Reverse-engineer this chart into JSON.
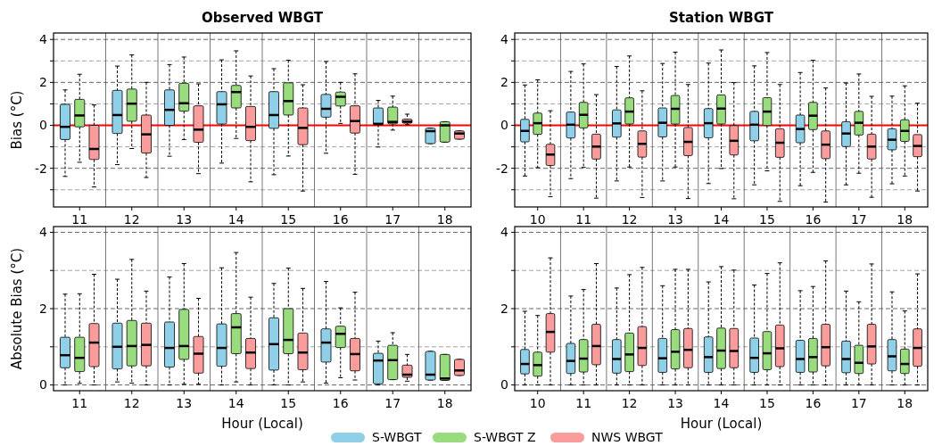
{
  "chart_data": [
    {
      "type": "box",
      "title": "Observed WBGT",
      "ylabel": "Bias (°C)",
      "legend": "bottom",
      "categories": [
        "11",
        "12",
        "13",
        "14",
        "15",
        "16",
        "17",
        "18"
      ],
      "ylim": [
        -3.8,
        4.3
      ],
      "yticks": [
        {
          "value": -3,
          "label": null
        },
        -2,
        {
          "value": -1,
          "label": null
        },
        0,
        {
          "value": 1,
          "label": null
        },
        2,
        {
          "value": 3,
          "label": null
        },
        4
      ],
      "grid": "y",
      "ref_lines": [
        {
          "axis": "y",
          "value": 0,
          "color": "#ff0000"
        }
      ],
      "series": [
        {
          "name": "S-WBGT",
          "color": "#8fd0e8",
          "boxes": [
            {
              "low": -2.38,
              "q1": -0.66,
              "median": -0.07,
              "q3": 0.98,
              "high": 1.65
            },
            {
              "low": -1.83,
              "q1": -0.38,
              "median": 0.48,
              "q3": 1.63,
              "high": 2.76
            },
            {
              "low": -1.44,
              "q1": 0,
              "median": 0.72,
              "q3": 1.65,
              "high": 2.83
            },
            {
              "low": -1.76,
              "q1": 0.06,
              "median": 0.98,
              "q3": 1.57,
              "high": 3.05
            },
            {
              "low": -2.3,
              "q1": -0.14,
              "median": 0.48,
              "q3": 1.57,
              "high": 2.64
            },
            {
              "low": -1.3,
              "q1": 0.38,
              "median": 0.77,
              "q3": 1.44,
              "high": 2.97
            },
            {
              "low": -1.01,
              "q1": 0.03,
              "median": 0.07,
              "q3": 0.81,
              "high": 1.16
            },
            {
              "low": -0.85,
              "q1": -0.85,
              "median": -0.27,
              "q3": -0.13,
              "high": -0.13
            }
          ]
        },
        {
          "name": "S-WBGT Z",
          "color": "#98dc7e",
          "boxes": [
            {
              "low": -1.72,
              "q1": -0.07,
              "median": 0.46,
              "q3": 1.21,
              "high": 2.38
            },
            {
              "low": -1.08,
              "q1": 0.19,
              "median": 1.01,
              "q3": 1.69,
              "high": 3.28
            },
            {
              "low": -0.66,
              "q1": 0.66,
              "median": 1.03,
              "q3": 1.96,
              "high": 3.18
            },
            {
              "low": -0.61,
              "q1": 0.81,
              "median": 1.55,
              "q3": 1.86,
              "high": 3.47
            },
            {
              "low": -1.43,
              "q1": 0.48,
              "median": 1.13,
              "q3": 1.98,
              "high": 3.03
            },
            {
              "low": 0.09,
              "q1": 0.9,
              "median": 1.33,
              "q3": 1.55,
              "high": 2.0
            },
            {
              "low": -0.22,
              "q1": 0.07,
              "median": 0.16,
              "q3": 0.85,
              "high": 1.36
            },
            {
              "low": -0.78,
              "q1": -0.78,
              "median": 0,
              "q3": 0.17,
              "high": 0.17
            }
          ]
        },
        {
          "name": "NWS WBGT",
          "color": "#fa9c9c",
          "boxes": [
            {
              "low": -2.87,
              "q1": -1.59,
              "median": -1.1,
              "q3": 0,
              "high": 0.95
            },
            {
              "low": -2.43,
              "q1": -1.29,
              "median": -0.42,
              "q3": 0.48,
              "high": 2.0
            },
            {
              "low": -2.25,
              "q1": -0.79,
              "median": -0.2,
              "q3": 0.91,
              "high": 1.93
            },
            {
              "low": -2.63,
              "q1": -0.71,
              "median": -0.07,
              "q3": 0.88,
              "high": 2.3
            },
            {
              "low": -3.06,
              "q1": -0.9,
              "median": -0.12,
              "q3": 0.81,
              "high": 1.89
            },
            {
              "low": -2.28,
              "q1": -0.36,
              "median": 0.2,
              "q3": 0.91,
              "high": 2.4
            },
            {
              "low": 0.03,
              "q1": 0.1,
              "median": 0.17,
              "q3": 0.29,
              "high": 0.52
            },
            {
              "low": -0.64,
              "q1": -0.64,
              "median": -0.38,
              "q3": -0.26,
              "high": -0.26
            }
          ]
        }
      ]
    },
    {
      "type": "box",
      "title": "Station WBGT",
      "categories": [
        "10",
        "11",
        "12",
        "13",
        "14",
        "15",
        "16",
        "17",
        "18"
      ],
      "ylim": [
        -3.8,
        4.3
      ],
      "yticks": [
        {
          "value": -3,
          "label": null
        },
        -2,
        {
          "value": -1,
          "label": null
        },
        0,
        {
          "value": 1,
          "label": null
        },
        2,
        {
          "value": 3,
          "label": null
        },
        4
      ],
      "grid": "y",
      "ref_lines": [
        {
          "axis": "y",
          "value": 0,
          "color": "#ff0000"
        }
      ],
      "series": [
        {
          "color": "#8fd0e8",
          "boxes": [
            {
              "low": -2.36,
              "q1": -0.77,
              "median": -0.26,
              "q3": 0.28,
              "high": 1.88
            },
            {
              "low": -2.48,
              "q1": -0.59,
              "median": 0.03,
              "q3": 0.62,
              "high": 2.51
            },
            {
              "low": -2.59,
              "q1": -0.55,
              "median": 0.09,
              "q3": 0.72,
              "high": 2.74
            },
            {
              "low": -2.59,
              "q1": -0.54,
              "median": 0.12,
              "q3": 0.81,
              "high": 2.88
            },
            {
              "low": -2.71,
              "q1": -0.58,
              "median": 0.1,
              "q3": 0.78,
              "high": 2.9
            },
            {
              "low": -2.77,
              "q1": -0.72,
              "median": 0.03,
              "q3": 0.65,
              "high": 2.77
            },
            {
              "low": -2.81,
              "q1": -0.81,
              "median": -0.17,
              "q3": 0.48,
              "high": 2.46
            },
            {
              "low": -2.77,
              "q1": -0.99,
              "median": -0.38,
              "q3": 0.17,
              "high": 1.97
            },
            {
              "low": -2.72,
              "q1": -1.14,
              "median": -0.67,
              "q3": -0.16,
              "high": 1.36
            }
          ]
        },
        {
          "color": "#98dc7e",
          "boxes": [
            {
              "low": -1.97,
              "q1": -0.42,
              "median": 0.1,
              "q3": 0.57,
              "high": 2.12
            },
            {
              "low": -1.96,
              "q1": -0.12,
              "median": 0.49,
              "q3": 1.07,
              "high": 2.86
            },
            {
              "low": -1.94,
              "q1": 0.06,
              "median": 0.64,
              "q3": 1.28,
              "high": 3.23
            },
            {
              "low": -1.94,
              "q1": 0.06,
              "median": 0.77,
              "q3": 1.39,
              "high": 3.41
            },
            {
              "low": -2.01,
              "q1": 0.06,
              "median": 0.78,
              "q3": 1.42,
              "high": 3.51
            },
            {
              "low": -2.12,
              "q1": -0.01,
              "median": 0.64,
              "q3": 1.29,
              "high": 3.39
            },
            {
              "low": -2.19,
              "q1": -0.2,
              "median": 0.45,
              "q3": 1.07,
              "high": 3.03
            },
            {
              "low": -2.23,
              "q1": -0.45,
              "median": 0.12,
              "q3": 0.65,
              "high": 2.39
            },
            {
              "low": -2.36,
              "q1": -0.75,
              "median": -0.26,
              "q3": 0.26,
              "high": 1.84
            }
          ]
        },
        {
          "color": "#fa9c9c",
          "boxes": [
            {
              "low": -3.32,
              "q1": -1.87,
              "median": -1.36,
              "q3": -0.88,
              "high": 0.68
            },
            {
              "low": -3.39,
              "q1": -1.57,
              "median": -0.99,
              "q3": -0.41,
              "high": 1.43
            },
            {
              "low": -3.36,
              "q1": -1.48,
              "median": -0.86,
              "q3": -0.26,
              "high": 1.61
            },
            {
              "low": -3.41,
              "q1": -1.41,
              "median": -0.77,
              "q3": -0.1,
              "high": 1.9
            },
            {
              "low": -3.42,
              "q1": -1.38,
              "median": -0.72,
              "q3": -0.01,
              "high": 1.99
            },
            {
              "low": -3.54,
              "q1": -1.49,
              "median": -0.81,
              "q3": -0.16,
              "high": 1.9
            },
            {
              "low": -3.57,
              "q1": -1.55,
              "median": -0.9,
              "q3": -0.26,
              "high": 1.74
            },
            {
              "low": -3.35,
              "q1": -1.57,
              "median": -0.99,
              "q3": -0.41,
              "high": 1.35
            },
            {
              "low": -3.06,
              "q1": -1.46,
              "median": -0.96,
              "q3": -0.43,
              "high": 1.03
            }
          ]
        }
      ]
    },
    {
      "type": "box",
      "xlabel": "Hour (Local)",
      "ylabel": "Absolute Bias (°C)",
      "categories": [
        "11",
        "12",
        "13",
        "14",
        "15",
        "16",
        "17",
        "18"
      ],
      "ylim": [
        -0.15,
        4.15
      ],
      "yticks": [
        0,
        {
          "value": 1,
          "label": null
        },
        2,
        {
          "value": 3,
          "label": null
        },
        4
      ],
      "grid": "y",
      "series": [
        {
          "color": "#8fd0e8",
          "boxes": [
            {
              "low": 0,
              "q1": 0.45,
              "median": 0.78,
              "q3": 1.25,
              "high": 2.38
            },
            {
              "low": 0.08,
              "q1": 0.42,
              "median": 1.0,
              "q3": 1.62,
              "high": 2.77
            },
            {
              "low": 0,
              "q1": 0.47,
              "median": 0.97,
              "q3": 1.65,
              "high": 2.83
            },
            {
              "low": 0,
              "q1": 0.49,
              "median": 0.97,
              "q3": 1.6,
              "high": 3.07
            },
            {
              "low": 0,
              "q1": 0.39,
              "median": 1.07,
              "q3": 1.76,
              "high": 2.66
            },
            {
              "low": 0.05,
              "q1": 0.6,
              "median": 1.11,
              "q3": 1.47,
              "high": 2.71
            },
            {
              "low": 0,
              "q1": 0.03,
              "median": 0.64,
              "q3": 0.83,
              "high": 1.15
            },
            {
              "low": 0.13,
              "q1": 0.13,
              "median": 0.27,
              "q3": 0.88,
              "high": 0.88
            }
          ]
        },
        {
          "color": "#98dc7e",
          "boxes": [
            {
              "low": 0.04,
              "q1": 0.35,
              "median": 0.71,
              "q3": 1.25,
              "high": 2.39
            },
            {
              "low": 0.05,
              "q1": 0.5,
              "median": 1.02,
              "q3": 1.69,
              "high": 3.29
            },
            {
              "low": 0.02,
              "q1": 0.67,
              "median": 1.02,
              "q3": 1.98,
              "high": 3.18
            },
            {
              "low": 0.08,
              "q1": 0.82,
              "median": 1.51,
              "q3": 1.87,
              "high": 3.47
            },
            {
              "low": 0,
              "q1": 0.82,
              "median": 1.18,
              "q3": 2.0,
              "high": 3.06
            },
            {
              "low": 0.19,
              "q1": 0.98,
              "median": 1.34,
              "q3": 1.54,
              "high": 2.02
            },
            {
              "low": 0.14,
              "q1": 0.14,
              "median": 0.65,
              "q3": 1.04,
              "high": 1.37
            },
            {
              "low": 0.12,
              "q1": 0.12,
              "median": 0.17,
              "q3": 0.8,
              "high": 0.8
            }
          ]
        },
        {
          "color": "#fa9c9c",
          "boxes": [
            {
              "low": 0,
              "q1": 0.48,
              "median": 1.11,
              "q3": 1.61,
              "high": 2.9
            },
            {
              "low": 0,
              "q1": 0.5,
              "median": 1.05,
              "q3": 1.62,
              "high": 2.46
            },
            {
              "low": 0.02,
              "q1": 0.31,
              "median": 0.82,
              "q3": 1.27,
              "high": 2.27
            },
            {
              "low": 0,
              "q1": 0.43,
              "median": 0.85,
              "q3": 1.22,
              "high": 2.3
            },
            {
              "low": 0.08,
              "q1": 0.4,
              "median": 0.85,
              "q3": 1.36,
              "high": 2.53
            },
            {
              "low": 0.13,
              "q1": 0.37,
              "median": 0.81,
              "q3": 1.22,
              "high": 2.43
            },
            {
              "low": 0.1,
              "q1": 0.2,
              "median": 0.27,
              "q3": 0.52,
              "high": 0.8
            },
            {
              "low": 0.25,
              "q1": 0.25,
              "median": 0.38,
              "q3": 0.67,
              "high": 0.67
            }
          ]
        }
      ]
    },
    {
      "type": "box",
      "xlabel": "Hour (Local)",
      "categories": [
        "10",
        "11",
        "12",
        "13",
        "14",
        "15",
        "16",
        "17",
        "18"
      ],
      "ylim": [
        -0.15,
        4.15
      ],
      "yticks": [
        0,
        {
          "value": 1,
          "label": null
        },
        2,
        {
          "value": 3,
          "label": null
        },
        4
      ],
      "grid": "y",
      "series": [
        {
          "color": "#8fd0e8",
          "boxes": [
            {
              "low": 0,
              "q1": 0.29,
              "median": 0.55,
              "q3": 0.93,
              "high": 1.93
            },
            {
              "low": 0,
              "q1": 0.3,
              "median": 0.63,
              "q3": 1.09,
              "high": 2.33
            },
            {
              "low": 0,
              "q1": 0.31,
              "median": 0.68,
              "q3": 1.19,
              "high": 2.54
            },
            {
              "low": 0,
              "q1": 0.33,
              "median": 0.7,
              "q3": 1.22,
              "high": 2.6
            },
            {
              "low": 0,
              "q1": 0.33,
              "median": 0.73,
              "q3": 1.26,
              "high": 2.7
            },
            {
              "low": 0,
              "q1": 0.33,
              "median": 0.71,
              "q3": 1.23,
              "high": 2.62
            },
            {
              "low": 0,
              "q1": 0.33,
              "median": 0.68,
              "q3": 1.17,
              "high": 2.47
            },
            {
              "low": 0,
              "q1": 0.32,
              "median": 0.68,
              "q3": 1.15,
              "high": 2.46
            },
            {
              "low": 0,
              "q1": 0.37,
              "median": 0.75,
              "q3": 1.19,
              "high": 2.44
            }
          ]
        },
        {
          "color": "#98dc7e",
          "boxes": [
            {
              "low": 0,
              "q1": 0.23,
              "median": 0.52,
              "q3": 0.86,
              "high": 1.82
            },
            {
              "low": 0,
              "q1": 0.34,
              "median": 0.69,
              "q3": 1.19,
              "high": 2.5
            },
            {
              "low": 0,
              "q1": 0.35,
              "median": 0.8,
              "q3": 1.36,
              "high": 2.89
            },
            {
              "low": 0,
              "q1": 0.42,
              "median": 0.87,
              "q3": 1.45,
              "high": 3.03
            },
            {
              "low": 0,
              "q1": 0.43,
              "median": 0.9,
              "q3": 1.49,
              "high": 3.1
            },
            {
              "low": 0,
              "q1": 0.4,
              "median": 0.83,
              "q3": 1.4,
              "high": 2.92
            },
            {
              "low": 0,
              "q1": 0.34,
              "median": 0.73,
              "q3": 1.22,
              "high": 2.58
            },
            {
              "low": 0,
              "q1": 0.3,
              "median": 0.58,
              "q3": 1.04,
              "high": 2.18
            },
            {
              "low": 0,
              "q1": 0.3,
              "median": 0.55,
              "q3": 0.94,
              "high": 1.94
            }
          ]
        },
        {
          "color": "#fa9c9c",
          "boxes": [
            {
              "low": 0,
              "q1": 0.86,
              "median": 1.39,
              "q3": 1.87,
              "high": 3.33
            },
            {
              "low": 0,
              "q1": 0.53,
              "median": 1.02,
              "q3": 1.59,
              "high": 3.18
            },
            {
              "low": 0,
              "q1": 0.51,
              "median": 0.97,
              "q3": 1.53,
              "high": 3.08
            },
            {
              "low": 0,
              "q1": 0.45,
              "median": 0.92,
              "q3": 1.48,
              "high": 3.03
            },
            {
              "low": 0,
              "q1": 0.45,
              "median": 0.89,
              "q3": 1.48,
              "high": 3.01
            },
            {
              "low": 0,
              "q1": 0.48,
              "median": 0.96,
              "q3": 1.57,
              "high": 3.2
            },
            {
              "low": 0,
              "q1": 0.5,
              "median": 0.99,
              "q3": 1.59,
              "high": 3.25
            },
            {
              "low": 0,
              "q1": 0.55,
              "median": 1.01,
              "q3": 1.59,
              "high": 3.17
            },
            {
              "low": 0,
              "q1": 0.49,
              "median": 0.97,
              "q3": 1.47,
              "high": 2.91
            }
          ]
        }
      ]
    }
  ]
}
